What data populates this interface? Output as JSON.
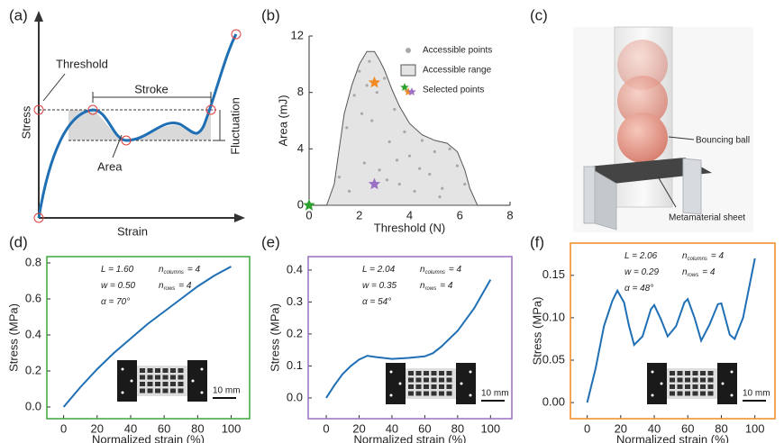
{
  "panel_labels": [
    "(a)",
    "(b)",
    "(c)",
    "(d)",
    "(e)",
    "(f)"
  ],
  "schematic": {
    "threshold": "Threshold",
    "stroke": "Stroke",
    "fluctuation": "Fluctuation",
    "stress": "Stress",
    "strain": "Strain",
    "area": "Area"
  },
  "photo": {
    "ball": "Bouncing ball",
    "sheet": "Metamaterial sheet"
  },
  "chart_data": [
    {
      "type": "scatter",
      "xlabel": "Threshold (N)",
      "ylabel": "Area (mJ)",
      "xlim": [
        0,
        8
      ],
      "ylim": [
        0,
        12
      ],
      "xticks": [
        0,
        2,
        4,
        6,
        8
      ],
      "yticks": [
        0,
        4,
        8,
        12
      ],
      "series": [
        {
          "name": "Accessible points",
          "mark": "point",
          "color": "#a8a8a8",
          "x": [
            1.2,
            1.5,
            1.8,
            2.0,
            2.2,
            2.4,
            2.5,
            2.7,
            2.8,
            3.0,
            3.2,
            3.4,
            3.6,
            3.8,
            4.0,
            4.2,
            4.5,
            4.8,
            5.0,
            5.3,
            5.6,
            5.9,
            6.2,
            1.6,
            2.1,
            2.3,
            3.1,
            3.5,
            4.4,
            5.2
          ],
          "y": [
            2.0,
            5.5,
            7.8,
            9.5,
            3.0,
            10.2,
            6.0,
            8.0,
            2.5,
            9.0,
            4.5,
            6.8,
            1.5,
            5.2,
            3.5,
            1.0,
            4.6,
            2.2,
            3.8,
            1.2,
            4.0,
            2.8,
            1.5,
            1.0,
            6.5,
            8.5,
            1.8,
            3.2,
            2.6,
            0.6
          ]
        },
        {
          "name": "Accessible range",
          "mark": "area",
          "color": "#e4e4e4",
          "x": [
            0.7,
            1.0,
            1.2,
            1.4,
            1.7,
            2.0,
            2.3,
            2.6,
            2.8,
            3.0,
            3.3,
            3.6,
            4.0,
            4.5,
            5.0,
            5.5,
            5.9,
            6.2,
            6.4,
            6.7,
            0.7
          ],
          "y": [
            0,
            1.5,
            4.0,
            6.5,
            8.5,
            10.0,
            10.9,
            10.9,
            10.3,
            9.6,
            8.2,
            7.0,
            5.8,
            5.0,
            4.6,
            4.4,
            3.8,
            2.5,
            1.2,
            0,
            0
          ]
        },
        {
          "name": "Selected points",
          "mark": "star",
          "colors": [
            "#2ca02c",
            "#f08a24",
            "#9b6fc4"
          ],
          "x": [
            0,
            2.6,
            2.6
          ],
          "y": [
            0,
            8.7,
            1.5
          ]
        }
      ]
    },
    {
      "type": "line",
      "xlabel": "Normalized strain (%)",
      "ylabel": "Stress (MPa)",
      "frame_color": "#3aa63a",
      "color": "#1f6fb5",
      "xlim": [
        -10,
        111
      ],
      "ylim": [
        -0.065,
        0.835
      ],
      "xticks": [
        0,
        20,
        40,
        60,
        80,
        100
      ],
      "yticks": [
        {
          "value": 0,
          "label": "0.0"
        },
        0.2,
        0.4,
        0.6,
        0.8
      ],
      "x": [
        0,
        10,
        20,
        30,
        40,
        50,
        60,
        70,
        80,
        90,
        100
      ],
      "values": [
        0,
        0.11,
        0.21,
        0.3,
        0.38,
        0.46,
        0.53,
        0.6,
        0.67,
        0.73,
        0.78
      ],
      "params": [
        {
          "text": "L = 1.60"
        },
        {
          "text": "n",
          "sub": "columns",
          "tail": "= 4"
        },
        {
          "text": "w = 0.50"
        },
        {
          "text": "n",
          "sub": "rows",
          "tail": "= 4"
        },
        {
          "text": "α = 70°"
        }
      ],
      "scale_bar": "10 mm"
    },
    {
      "type": "line",
      "xlabel": "Normalized strain (%)",
      "ylabel": "Stress (MPa)",
      "frame_color": "#9b6fc4",
      "color": "#1f6fb5",
      "xlim": [
        -11,
        113
      ],
      "ylim": [
        -0.065,
        0.442
      ],
      "xticks": [
        0,
        20,
        40,
        60,
        80,
        100
      ],
      "yticks": [
        {
          "value": 0,
          "label": "0.0"
        },
        0.1,
        0.2,
        0.3,
        0.4
      ],
      "x": [
        0,
        5,
        10,
        15,
        20,
        25,
        30,
        40,
        50,
        60,
        65,
        70,
        80,
        90,
        100
      ],
      "values": [
        0,
        0.04,
        0.075,
        0.1,
        0.12,
        0.132,
        0.128,
        0.122,
        0.125,
        0.13,
        0.14,
        0.16,
        0.21,
        0.28,
        0.37
      ],
      "params": [
        {
          "text": "L = 2.04"
        },
        {
          "text": "n",
          "sub": "columns",
          "tail": "= 4"
        },
        {
          "text": "w = 0.35"
        },
        {
          "text": "n",
          "sub": "rows",
          "tail": "= 4"
        },
        {
          "text": "α = 54°"
        }
      ],
      "scale_bar": "10 mm"
    },
    {
      "type": "line",
      "xlabel": "Normalized strain (%)",
      "ylabel": "Stress (MPa)",
      "frame_color": "#f08a24",
      "color": "#1f6fb5",
      "xlim": [
        -10,
        112
      ],
      "ylim": [
        -0.019,
        0.188
      ],
      "xticks": [
        0,
        20,
        40,
        60,
        80,
        100
      ],
      "yticks": [
        {
          "value": 0,
          "label": "0.00"
        },
        0.05,
        {
          "value": 0.1,
          "label": "0.10"
        },
        0.15
      ],
      "x": [
        0,
        5,
        10,
        15,
        18,
        22,
        25,
        28,
        33,
        38,
        40,
        44,
        48,
        53,
        58,
        60,
        64,
        68,
        73,
        78,
        80,
        85,
        88,
        93,
        100
      ],
      "values": [
        0,
        0.04,
        0.09,
        0.12,
        0.132,
        0.118,
        0.09,
        0.068,
        0.078,
        0.11,
        0.115,
        0.098,
        0.078,
        0.09,
        0.118,
        0.122,
        0.1,
        0.073,
        0.092,
        0.116,
        0.117,
        0.08,
        0.075,
        0.1,
        0.17
      ],
      "params": [
        {
          "text": "L = 2.06"
        },
        {
          "text": "n",
          "sub": "columns",
          "tail": "= 4"
        },
        {
          "text": "w = 0.29"
        },
        {
          "text": "n",
          "sub": "rows",
          "tail": "= 4"
        },
        {
          "text": "α = 48°"
        }
      ],
      "scale_bar": "10 mm"
    }
  ]
}
